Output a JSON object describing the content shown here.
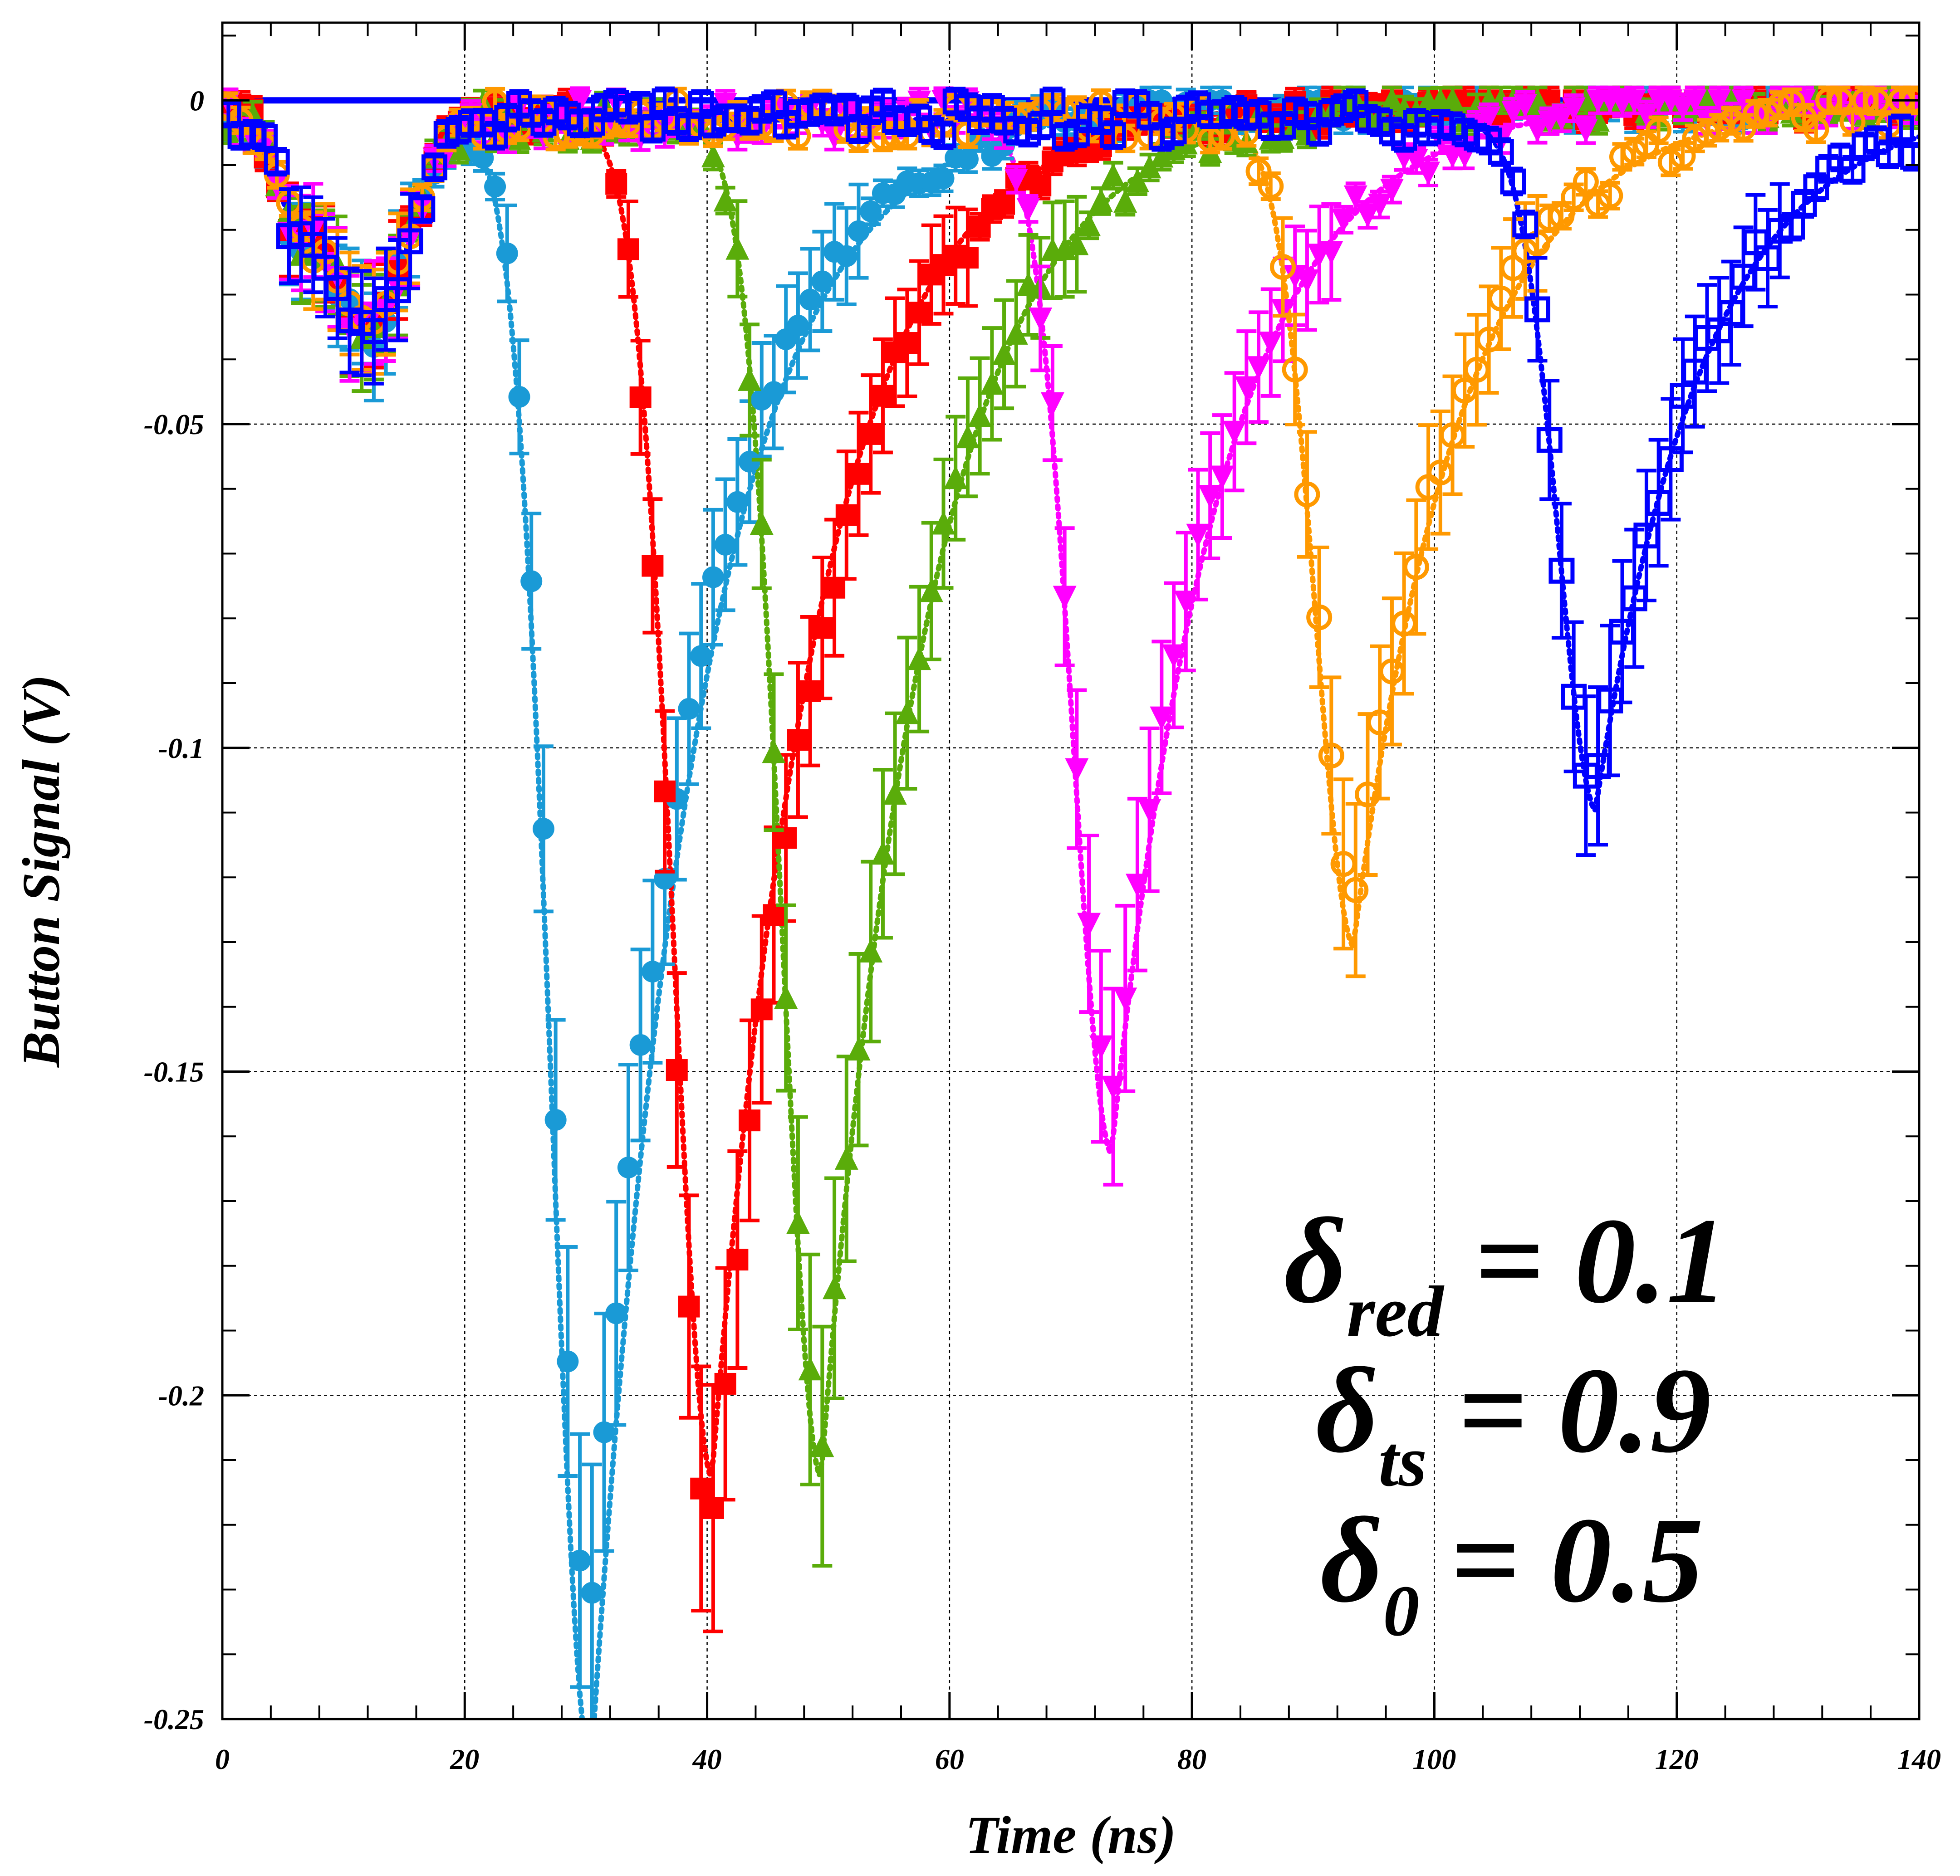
{
  "chart_data": {
    "type": "scatter",
    "xlabel": "Time (ns)",
    "ylabel": "Button Signal (V)",
    "xlim": [
      0,
      140
    ],
    "ylim": [
      -0.25,
      0.012
    ],
    "x_ticks": [
      0,
      20,
      40,
      60,
      80,
      100,
      120,
      140
    ],
    "x_tick_labels": [
      "0",
      "20",
      "40",
      "60",
      "80",
      "100",
      "120",
      "140"
    ],
    "y_ticks": [
      0,
      -0.05,
      -0.1,
      -0.15,
      -0.2,
      -0.25
    ],
    "y_tick_labels": [
      "0",
      "-0.05",
      "-0.1",
      "-0.15",
      "-0.2",
      "-0.25"
    ],
    "grid": true,
    "annotations": [
      {
        "symbol": "δ",
        "subscript": "red",
        "text": " = 0.1"
      },
      {
        "symbol": "δ",
        "subscript": "ts",
        "text": " = 0.9"
      },
      {
        "symbol": "δ",
        "subscript": "0",
        "text": " = 0.5"
      }
    ],
    "series": [
      {
        "color": "#1a9ad6",
        "marker": "filled-circle",
        "peak_time": 30.5,
        "peak_value": -0.232,
        "curve_min": -0.255
      },
      {
        "color": "#ff0000",
        "marker": "filled-square",
        "peak_time": 40.5,
        "peak_value": -0.22,
        "curve_min": -0.21
      },
      {
        "color": "#5aac0a",
        "marker": "filled-triangle-up",
        "peak_time": 49.5,
        "peak_value": -0.205,
        "curve_min": -0.21
      },
      {
        "color": "#ff00ff",
        "marker": "filled-triangle-down",
        "peak_time": 73.5,
        "peak_value": -0.152,
        "curve_min": -0.16
      },
      {
        "color": "#ff9900",
        "marker": "open-circle",
        "peak_time": 93.5,
        "peak_value": -0.122,
        "curve_min": -0.128
      },
      {
        "color": "#0000ff",
        "marker": "open-square",
        "peak_time": 113.5,
        "peak_value": -0.105,
        "curve_min": -0.107
      }
    ]
  }
}
